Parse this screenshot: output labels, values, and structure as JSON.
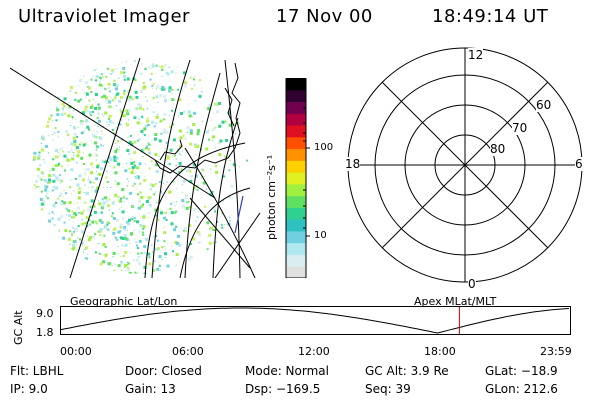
{
  "header": {
    "instrument": "Ultraviolet Imager",
    "date": "17 Nov 00",
    "time": "18:49:14 UT"
  },
  "colorbar": {
    "unit_label": "photon cm⁻²s⁻¹",
    "ticks": [
      "100",
      "10"
    ],
    "colors": [
      "#e0e0e0",
      "#d8eef0",
      "#b0e8f0",
      "#70d0e0",
      "#2fc0c0",
      "#30d090",
      "#60e060",
      "#a0f040",
      "#e0f020",
      "#ffd000",
      "#ff9000",
      "#ff5000",
      "#e01020",
      "#b00040",
      "#700050",
      "#300030",
      "#000000"
    ]
  },
  "polar_plot": {
    "labels": {
      "top": "12",
      "bottom": "0",
      "left": "18",
      "right": "6",
      "lat60": "60",
      "lat70": "70",
      "lat80": "80"
    }
  },
  "timeline": {
    "left_label": "Geographic Lat/Lon",
    "right_label": "Apex MLat/MLT",
    "axis_title": "GC Alt",
    "y_ticks": [
      "9.0",
      "1.8"
    ],
    "x_ticks": [
      "00:00",
      "06:00",
      "12:00",
      "18:00",
      "23:59"
    ],
    "marker_time_hours": 18.82
  },
  "info": {
    "flt": "Flt: LBHL",
    "door": "Door: Closed",
    "mode": "Mode: Normal",
    "gc_alt": "GC Alt: 3.9 Re",
    "glat": "GLat: −18.9",
    "ip": "IP:  9.0",
    "gain": "Gain: 13",
    "dsp": "Dsp: −169.5",
    "seq": "Seq: 39",
    "glon": "GLon: 212.6"
  }
}
